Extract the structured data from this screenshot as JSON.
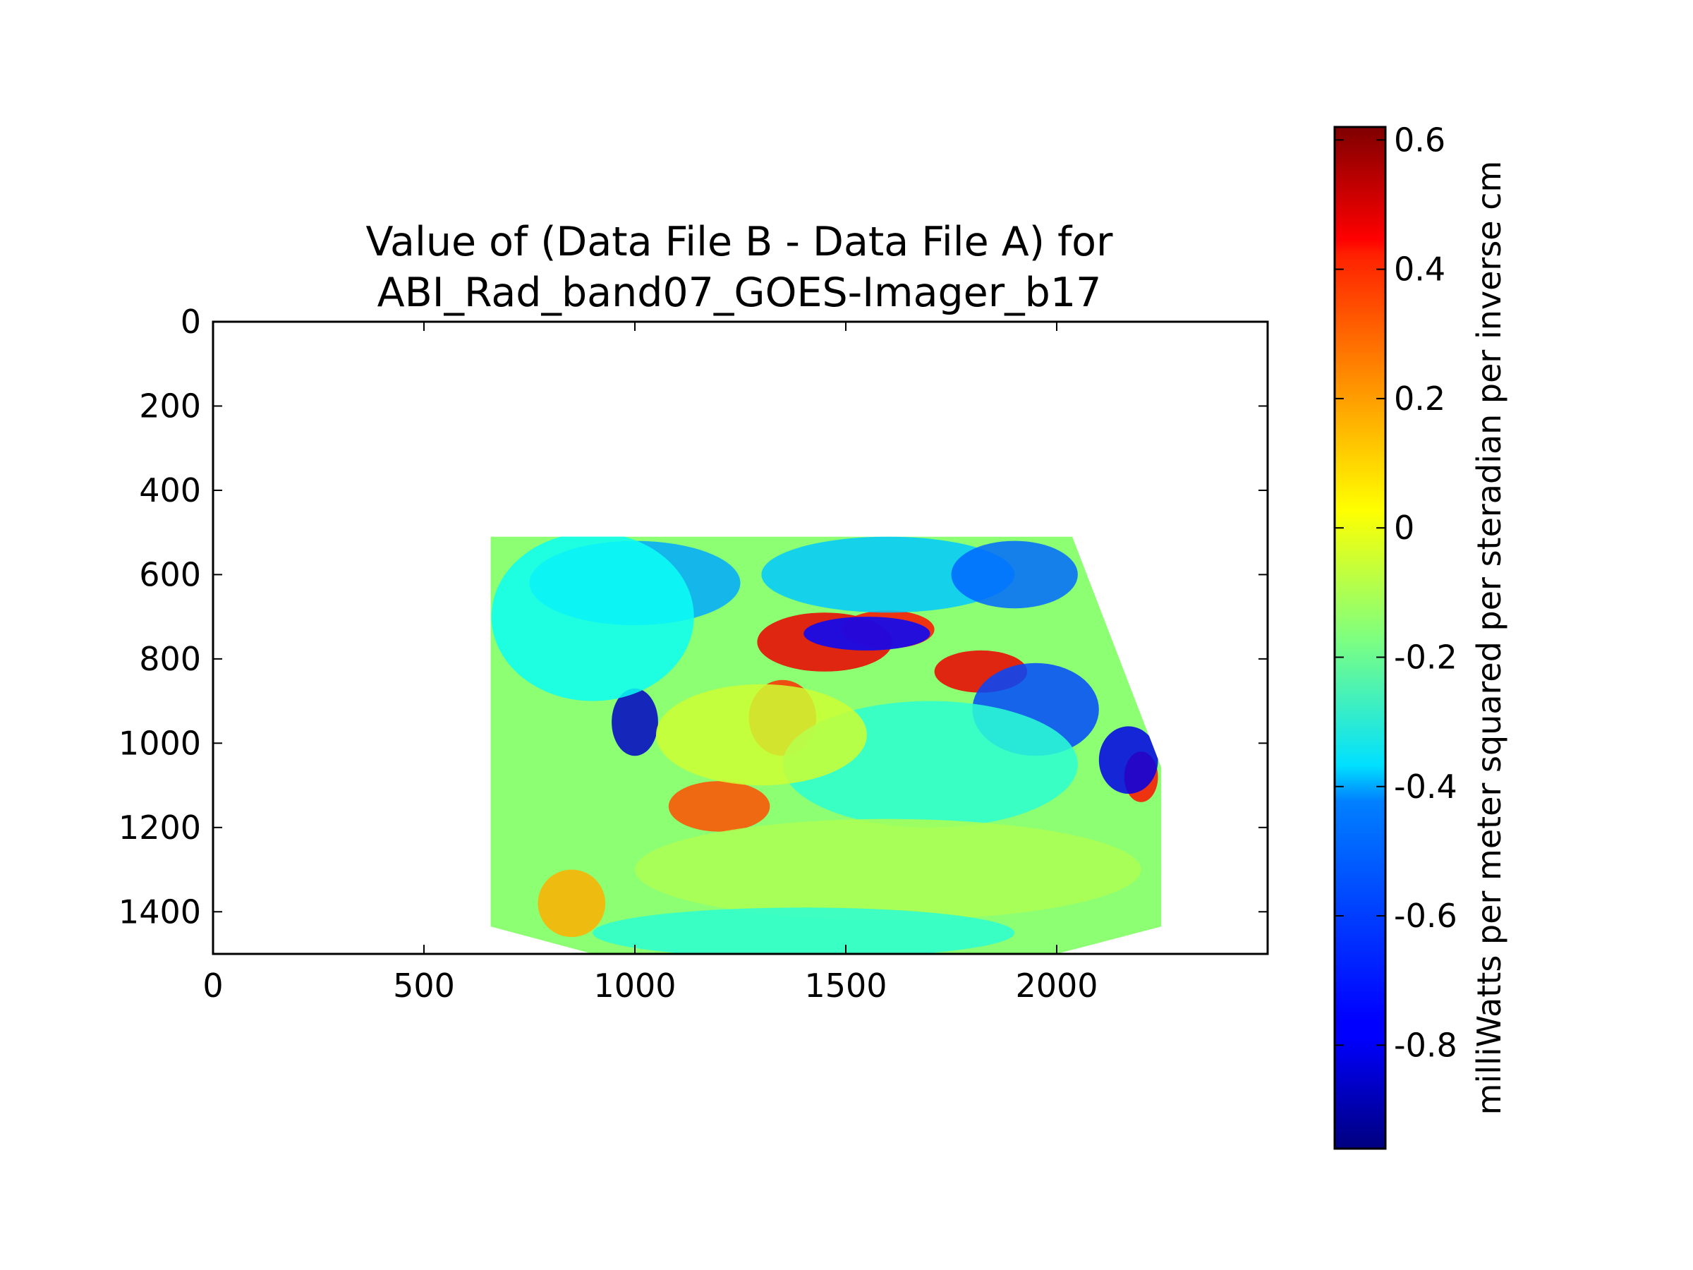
{
  "chart_data": {
    "type": "heatmap",
    "title_lines": [
      "Value of (Data File B - Data File A) for",
      "ABI_Rad_band07_GOES-Imager_b17"
    ],
    "xlabel": "",
    "ylabel": "",
    "x_range": [
      0,
      2500
    ],
    "y_range": [
      0,
      1500
    ],
    "y_inverted": true,
    "x_ticks": [
      0,
      500,
      1000,
      1500,
      2000
    ],
    "y_ticks": [
      0,
      200,
      400,
      600,
      800,
      1000,
      1200,
      1400
    ],
    "x_tick_labels": [
      "0",
      "500",
      "1000",
      "1500",
      "2000"
    ],
    "y_tick_labels": [
      "0",
      "200",
      "400",
      "600",
      "800",
      "1000",
      "1200",
      "1400"
    ],
    "grid": false,
    "colormap": "jet",
    "data_extent": {
      "polygon": [
        [
          658,
          510
        ],
        [
          2037,
          510
        ],
        [
          2248,
          1058
        ],
        [
          2248,
          1435
        ],
        [
          2000,
          1500
        ],
        [
          900,
          1500
        ],
        [
          658,
          1435
        ]
      ]
    },
    "background_value": -0.15,
    "features": [
      {
        "x": 1450,
        "y": 760,
        "rx": 160,
        "ry": 70,
        "value": 0.45
      },
      {
        "x": 1600,
        "y": 730,
        "rx": 110,
        "ry": 45,
        "value": 0.4
      },
      {
        "x": 1350,
        "y": 940,
        "rx": 80,
        "ry": 90,
        "value": 0.35
      },
      {
        "x": 1820,
        "y": 830,
        "rx": 110,
        "ry": 50,
        "value": 0.45
      },
      {
        "x": 1200,
        "y": 1150,
        "rx": 120,
        "ry": 60,
        "value": 0.3
      },
      {
        "x": 2200,
        "y": 1080,
        "rx": 40,
        "ry": 60,
        "value": 0.4
      },
      {
        "x": 850,
        "y": 1380,
        "rx": 80,
        "ry": 80,
        "value": 0.15
      },
      {
        "x": 1000,
        "y": 950,
        "rx": 55,
        "ry": 80,
        "value": -0.85
      },
      {
        "x": 1550,
        "y": 740,
        "rx": 150,
        "ry": 40,
        "value": -0.75
      },
      {
        "x": 1950,
        "y": 920,
        "rx": 150,
        "ry": 110,
        "value": -0.65
      },
      {
        "x": 2170,
        "y": 1040,
        "rx": 70,
        "ry": 80,
        "value": -0.8
      },
      {
        "x": 1000,
        "y": 620,
        "rx": 250,
        "ry": 100,
        "value": -0.5
      },
      {
        "x": 1600,
        "y": 600,
        "rx": 300,
        "ry": 90,
        "value": -0.45
      },
      {
        "x": 1900,
        "y": 600,
        "rx": 150,
        "ry": 80,
        "value": -0.6
      },
      {
        "x": 900,
        "y": 700,
        "rx": 240,
        "ry": 200,
        "value": -0.35
      },
      {
        "x": 1700,
        "y": 1050,
        "rx": 350,
        "ry": 150,
        "value": -0.3
      },
      {
        "x": 1600,
        "y": 1300,
        "rx": 600,
        "ry": 120,
        "value": -0.1
      },
      {
        "x": 1300,
        "y": 980,
        "rx": 250,
        "ry": 120,
        "value": -0.05
      },
      {
        "x": 1400,
        "y": 1450,
        "rx": 500,
        "ry": 60,
        "value": -0.3
      }
    ],
    "colorbar": {
      "range": [
        -0.96,
        0.62
      ],
      "ticks": [
        0.6,
        0.4,
        0.2,
        0,
        -0.2,
        -0.4,
        -0.6,
        -0.8
      ],
      "tick_labels": [
        "0.6",
        "0.4",
        "0.2",
        "0",
        "-0.2",
        "-0.4",
        "-0.6",
        "-0.8"
      ],
      "label": "milliWatts per meter squared per steradian per inverse cm"
    }
  }
}
